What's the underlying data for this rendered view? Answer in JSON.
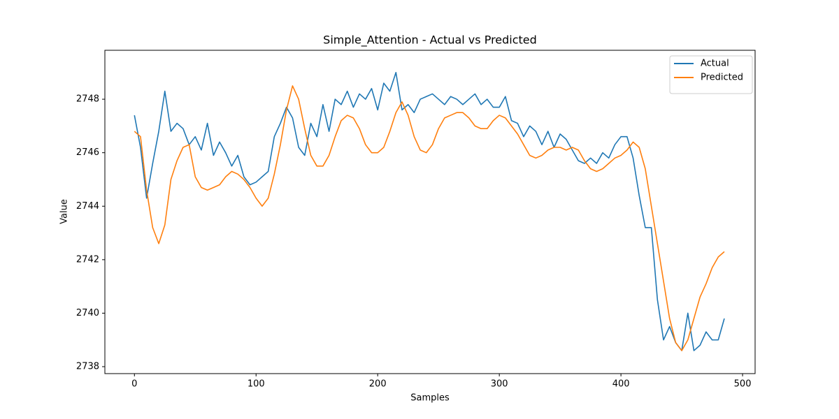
{
  "chart_data": {
    "type": "line",
    "title": "Simple_Attention - Actual vs Predicted",
    "xlabel": "Samples",
    "ylabel": "Value",
    "x": [
      0,
      5,
      10,
      15,
      20,
      25,
      30,
      35,
      40,
      45,
      50,
      55,
      60,
      65,
      70,
      75,
      80,
      85,
      90,
      95,
      100,
      105,
      110,
      115,
      120,
      125,
      130,
      135,
      140,
      145,
      150,
      155,
      160,
      165,
      170,
      175,
      180,
      185,
      190,
      195,
      200,
      205,
      210,
      215,
      220,
      225,
      230,
      235,
      240,
      245,
      250,
      255,
      260,
      265,
      270,
      275,
      280,
      285,
      290,
      295,
      300,
      305,
      310,
      315,
      320,
      325,
      330,
      335,
      340,
      345,
      350,
      355,
      360,
      365,
      370,
      375,
      380,
      385,
      390,
      395,
      400,
      405,
      410,
      415,
      420,
      425,
      430,
      435,
      440,
      445,
      450,
      455,
      460,
      465,
      470,
      475,
      480,
      485
    ],
    "series": [
      {
        "name": "Actual",
        "color": "#1f77b4",
        "values": [
          2747.4,
          2746.2,
          2744.3,
          2745.6,
          2746.8,
          2748.3,
          2746.8,
          2747.1,
          2746.9,
          2746.3,
          2746.6,
          2746.1,
          2747.1,
          2745.9,
          2746.4,
          2746.0,
          2745.5,
          2745.9,
          2745.1,
          2744.8,
          2744.9,
          2745.1,
          2745.3,
          2746.6,
          2747.1,
          2747.7,
          2747.3,
          2746.2,
          2745.9,
          2747.1,
          2746.6,
          2747.8,
          2746.8,
          2748.0,
          2747.8,
          2748.3,
          2747.7,
          2748.2,
          2748.0,
          2748.4,
          2747.6,
          2748.6,
          2748.3,
          2749.0,
          2747.6,
          2747.8,
          2747.5,
          2748.0,
          2748.1,
          2748.2,
          2748.0,
          2747.8,
          2748.1,
          2748.0,
          2747.8,
          2748.0,
          2748.2,
          2747.8,
          2748.0,
          2747.7,
          2747.7,
          2748.1,
          2747.2,
          2747.1,
          2746.6,
          2747.0,
          2746.8,
          2746.3,
          2746.8,
          2746.2,
          2746.7,
          2746.5,
          2746.1,
          2745.7,
          2745.6,
          2745.8,
          2745.6,
          2746.0,
          2745.8,
          2746.3,
          2746.6,
          2746.6,
          2745.8,
          2744.4,
          2743.2,
          2743.2,
          2740.5,
          2739.0,
          2739.5,
          2738.9,
          2738.6,
          2740.0,
          2738.6,
          2738.8,
          2739.3,
          2739.0,
          2739.0,
          2739.8
        ]
      },
      {
        "name": "Predicted",
        "color": "#ff7f0e",
        "values": [
          2746.8,
          2746.6,
          2744.6,
          2743.2,
          2742.6,
          2743.3,
          2745.0,
          2745.7,
          2746.2,
          2746.3,
          2745.1,
          2744.7,
          2744.6,
          2744.7,
          2744.8,
          2745.1,
          2745.3,
          2745.2,
          2745.0,
          2744.7,
          2744.3,
          2744.0,
          2744.3,
          2745.2,
          2746.3,
          2747.6,
          2748.5,
          2748.0,
          2746.9,
          2745.9,
          2745.5,
          2745.5,
          2745.9,
          2746.6,
          2747.2,
          2747.4,
          2747.3,
          2746.9,
          2746.3,
          2746.0,
          2746.0,
          2746.2,
          2746.8,
          2747.5,
          2747.9,
          2747.4,
          2746.6,
          2746.1,
          2746.0,
          2746.3,
          2746.9,
          2747.3,
          2747.4,
          2747.5,
          2747.5,
          2747.3,
          2747.0,
          2746.9,
          2746.9,
          2747.2,
          2747.4,
          2747.3,
          2747.0,
          2746.7,
          2746.3,
          2745.9,
          2745.8,
          2745.9,
          2746.1,
          2746.2,
          2746.2,
          2746.1,
          2746.2,
          2746.1,
          2745.7,
          2745.4,
          2745.3,
          2745.4,
          2745.6,
          2745.8,
          2745.9,
          2746.1,
          2746.4,
          2746.2,
          2745.4,
          2744.0,
          2742.6,
          2741.2,
          2739.8,
          2738.9,
          2738.6,
          2739.0,
          2739.8,
          2740.6,
          2741.1,
          2741.7,
          2742.1,
          2742.3
        ]
      }
    ],
    "xlim": [
      -24.3,
      510.3
    ],
    "xticks": [
      0,
      100,
      200,
      300,
      400,
      500
    ],
    "ylim": [
      2737.74,
      2749.83
    ],
    "yticks": [
      2738,
      2740,
      2742,
      2744,
      2746,
      2748
    ],
    "legend": "upper right"
  }
}
